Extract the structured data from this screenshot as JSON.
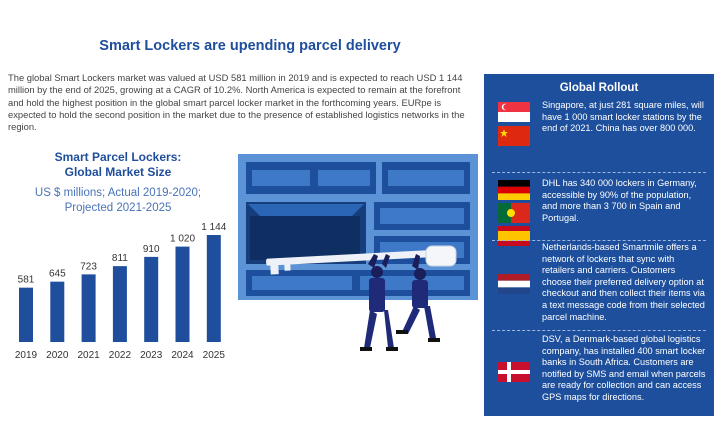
{
  "title": "Smart Lockers are upending parcel delivery",
  "intro": "The global Smart Lockers market was valued at USD 581 million in 2019 and is expected to reach USD 1 144 million by the end of 2025, growing at a CAGR of 10.2%. North America is expected to remain at the forefront and hold the highest position in the global smart parcel locker market in the forthcoming years. EURpe is expected to hold the second position in the market due to the presence of established logistics networks in the region.",
  "chart": {
    "title_line1": "Smart Parcel Lockers:",
    "title_line2": "Global Market Size",
    "subtitle_line1": "US $ millions; Actual 2019-2020;",
    "subtitle_line2": "Projected 2021-2025"
  },
  "chart_data": {
    "type": "bar",
    "title": "Smart Parcel Lockers: Global Market Size",
    "subtitle": "US $ millions; Actual 2019-2020; Projected 2021-2025",
    "categories": [
      "2019",
      "2020",
      "2021",
      "2022",
      "2023",
      "2024",
      "2025"
    ],
    "values": [
      581,
      645,
      723,
      811,
      910,
      1020,
      1144
    ],
    "labels": [
      "581",
      "645",
      "723",
      "811",
      "910",
      "1 020",
      "1 144"
    ],
    "ylim": [
      0,
      1144
    ],
    "color": "#1f4e9c",
    "grid": false
  },
  "rollout": {
    "title": "Global Rollout",
    "items": [
      {
        "text": "Singapore, at just 281 square miles, will have 1 000 smart locker stations by the end of 2021. China has over 800 000.",
        "flags": [
          "singapore-flag",
          "china-flag"
        ]
      },
      {
        "text": "DHL has 340 000 lockers in Germany, accessible by 90% of the population, and more than 3 700 in Spain and Portugal.",
        "flags": [
          "germany-flag",
          "portugal-flag",
          "spain-flag"
        ]
      },
      {
        "text": "Netherlands-based Smartmile offers a network of lockers that sync with retailers and carriers. Customers choose their preferred delivery option at checkout and then collect their items via a text message code from their selected parcel machine.",
        "flags": [
          "netherlands-flag"
        ]
      },
      {
        "text": "DSV, a Denmark-based global logistics company, has installed 400 smart locker banks in South Africa. Customers are notified by SMS and email when parcels are ready for collection and can access GPS maps for directions.",
        "flags": [
          "denmark-flag"
        ]
      }
    ]
  },
  "colors": {
    "brand_blue": "#1f4e9c",
    "panel_blue": "#1d4f9c",
    "locker_light": "#5b93d6",
    "locker_dark": "#1d4f9c"
  }
}
